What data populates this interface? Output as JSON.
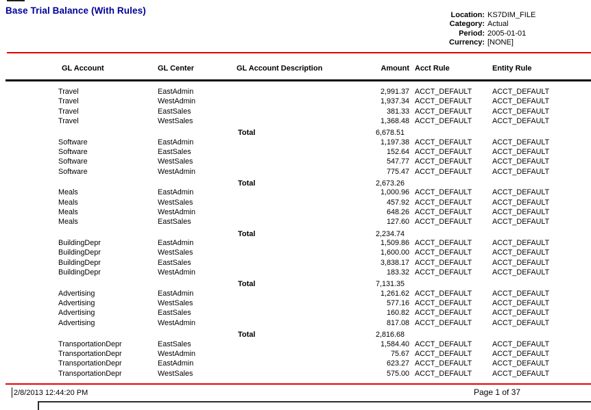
{
  "report": {
    "title": "Base Trial Balance (With Rules)"
  },
  "meta": {
    "fields": [
      {
        "label": "Location:",
        "value": "KS7DIM_FILE"
      },
      {
        "label": "Category:",
        "value": "Actual"
      },
      {
        "label": "Period:",
        "value": "2005-01-01"
      },
      {
        "label": "Currency:",
        "value": "[NONE]"
      }
    ]
  },
  "table": {
    "columns": [
      "GL Account",
      "GL Center",
      "GL Account Description",
      "Amount",
      "Acct Rule",
      "Entity Rule"
    ],
    "total_label": "Total",
    "groups": [
      {
        "account": "Travel",
        "rows": [
          {
            "gl_account": "Travel",
            "gl_center": "EastAdmin",
            "amount": "2,991.37",
            "acct_rule": "ACCT_DEFAULT",
            "entity_rule": "ACCT_DEFAULT"
          },
          {
            "gl_account": "Travel",
            "gl_center": "WestAdmin",
            "amount": "1,937.34",
            "acct_rule": "ACCT_DEFAULT",
            "entity_rule": "ACCT_DEFAULT"
          },
          {
            "gl_account": "Travel",
            "gl_center": "EastSales",
            "amount": "381.33",
            "acct_rule": "ACCT_DEFAULT",
            "entity_rule": "ACCT_DEFAULT"
          },
          {
            "gl_account": "Travel",
            "gl_center": "WestSales",
            "amount": "1,368.48",
            "acct_rule": "ACCT_DEFAULT",
            "entity_rule": "ACCT_DEFAULT"
          }
        ],
        "total": "6,678.51"
      },
      {
        "account": "Software",
        "rows": [
          {
            "gl_account": "Software",
            "gl_center": "EastAdmin",
            "amount": "1,197.38",
            "acct_rule": "ACCT_DEFAULT",
            "entity_rule": "ACCT_DEFAULT"
          },
          {
            "gl_account": "Software",
            "gl_center": "EastSales",
            "amount": "152.64",
            "acct_rule": "ACCT_DEFAULT",
            "entity_rule": "ACCT_DEFAULT"
          },
          {
            "gl_account": "Software",
            "gl_center": "WestSales",
            "amount": "547.77",
            "acct_rule": "ACCT_DEFAULT",
            "entity_rule": "ACCT_DEFAULT"
          },
          {
            "gl_account": "Software",
            "gl_center": "WestAdmin",
            "amount": "775.47",
            "acct_rule": "ACCT_DEFAULT",
            "entity_rule": "ACCT_DEFAULT"
          }
        ],
        "total": "2,673.26"
      },
      {
        "account": "Meals",
        "rows": [
          {
            "gl_account": "Meals",
            "gl_center": "EastAdmin",
            "amount": "1,000.96",
            "acct_rule": "ACCT_DEFAULT",
            "entity_rule": "ACCT_DEFAULT"
          },
          {
            "gl_account": "Meals",
            "gl_center": "WestSales",
            "amount": "457.92",
            "acct_rule": "ACCT_DEFAULT",
            "entity_rule": "ACCT_DEFAULT"
          },
          {
            "gl_account": "Meals",
            "gl_center": "WestAdmin",
            "amount": "648.26",
            "acct_rule": "ACCT_DEFAULT",
            "entity_rule": "ACCT_DEFAULT"
          },
          {
            "gl_account": "Meals",
            "gl_center": "EastSales",
            "amount": "127.60",
            "acct_rule": "ACCT_DEFAULT",
            "entity_rule": "ACCT_DEFAULT"
          }
        ],
        "total": "2,234.74"
      },
      {
        "account": "BuildingDepr",
        "rows": [
          {
            "gl_account": "BuildingDepr",
            "gl_center": "EastAdmin",
            "amount": "1,509.86",
            "acct_rule": "ACCT_DEFAULT",
            "entity_rule": "ACCT_DEFAULT"
          },
          {
            "gl_account": "BuildingDepr",
            "gl_center": "WestSales",
            "amount": "1,600.00",
            "acct_rule": "ACCT_DEFAULT",
            "entity_rule": "ACCT_DEFAULT"
          },
          {
            "gl_account": "BuildingDepr",
            "gl_center": "EastSales",
            "amount": "3,838.17",
            "acct_rule": "ACCT_DEFAULT",
            "entity_rule": "ACCT_DEFAULT"
          },
          {
            "gl_account": "BuildingDepr",
            "gl_center": "WestAdmin",
            "amount": "183.32",
            "acct_rule": "ACCT_DEFAULT",
            "entity_rule": "ACCT_DEFAULT"
          }
        ],
        "total": "7,131.35"
      },
      {
        "account": "Advertising",
        "rows": [
          {
            "gl_account": "Advertising",
            "gl_center": "EastAdmin",
            "amount": "1,261.62",
            "acct_rule": "ACCT_DEFAULT",
            "entity_rule": "ACCT_DEFAULT"
          },
          {
            "gl_account": "Advertising",
            "gl_center": "WestSales",
            "amount": "577.16",
            "acct_rule": "ACCT_DEFAULT",
            "entity_rule": "ACCT_DEFAULT"
          },
          {
            "gl_account": "Advertising",
            "gl_center": "EastSales",
            "amount": "160.82",
            "acct_rule": "ACCT_DEFAULT",
            "entity_rule": "ACCT_DEFAULT"
          },
          {
            "gl_account": "Advertising",
            "gl_center": "WestAdmin",
            "amount": "817.08",
            "acct_rule": "ACCT_DEFAULT",
            "entity_rule": "ACCT_DEFAULT"
          }
        ],
        "total": "2,816.68"
      },
      {
        "account": "TransportationDepr",
        "rows": [
          {
            "gl_account": "TransportationDepr",
            "gl_center": "EastSales",
            "amount": "1,584.40",
            "acct_rule": "ACCT_DEFAULT",
            "entity_rule": "ACCT_DEFAULT"
          },
          {
            "gl_account": "TransportationDepr",
            "gl_center": "WestAdmin",
            "amount": "75.67",
            "acct_rule": "ACCT_DEFAULT",
            "entity_rule": "ACCT_DEFAULT"
          },
          {
            "gl_account": "TransportationDepr",
            "gl_center": "EastAdmin",
            "amount": "623.27",
            "acct_rule": "ACCT_DEFAULT",
            "entity_rule": "ACCT_DEFAULT"
          },
          {
            "gl_account": "TransportationDepr",
            "gl_center": "WestSales",
            "amount": "575.00",
            "acct_rule": "ACCT_DEFAULT",
            "entity_rule": "ACCT_DEFAULT"
          }
        ],
        "total": null
      }
    ]
  },
  "footer": {
    "timestamp": "2/8/2013 12:44:20 PM",
    "page_label": "Page 1 of 37"
  },
  "colors": {
    "title_navy": "#000099",
    "rule_red": "#E60000",
    "rule_black": "#000000"
  }
}
